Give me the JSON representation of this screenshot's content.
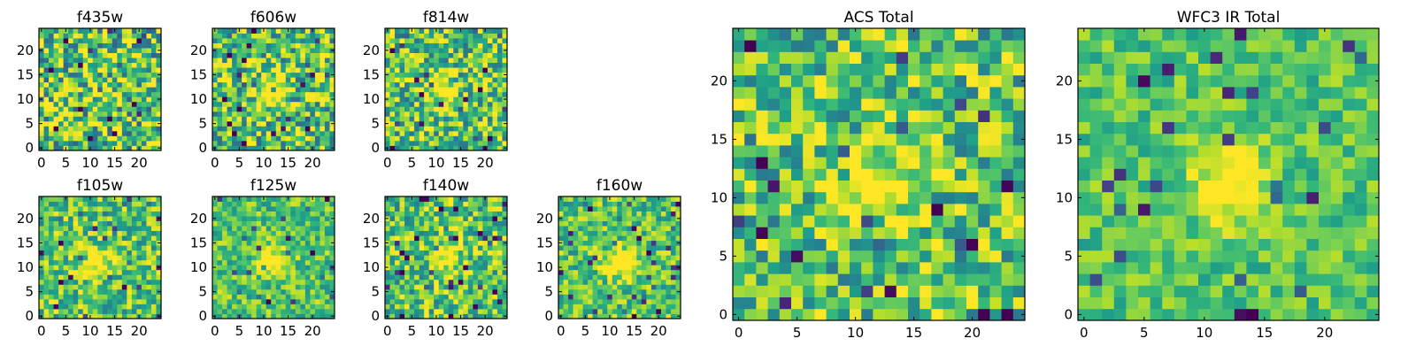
{
  "chart_data": [
    {
      "type": "heatmap",
      "title": "f435w",
      "rows": 25,
      "cols": 25,
      "xticks": [
        0,
        5,
        10,
        15,
        20
      ],
      "yticks": [
        0,
        5,
        10,
        15,
        20
      ],
      "colormap": "viridis",
      "peak": null,
      "noise": 0.85,
      "seed": 11
    },
    {
      "type": "heatmap",
      "title": "f606w",
      "rows": 25,
      "cols": 25,
      "xticks": [
        0,
        5,
        10,
        15,
        20
      ],
      "yticks": [
        0,
        5,
        10,
        15,
        20
      ],
      "colormap": "viridis",
      "peak": [
        11,
        12
      ],
      "noise": 0.75,
      "seed": 23
    },
    {
      "type": "heatmap",
      "title": "f814w",
      "rows": 25,
      "cols": 25,
      "xticks": [
        0,
        5,
        10,
        15,
        20
      ],
      "yticks": [
        0,
        5,
        10,
        15,
        20
      ],
      "colormap": "viridis",
      "peak": [
        11,
        12
      ],
      "noise": 0.7,
      "seed": 37
    },
    {
      "type": "heatmap",
      "title": "f105w",
      "rows": 25,
      "cols": 25,
      "xticks": [
        0,
        5,
        10,
        15,
        20
      ],
      "yticks": [
        0,
        5,
        10,
        15,
        20
      ],
      "colormap": "viridis",
      "peak": [
        11,
        11
      ],
      "noise": 0.55,
      "seed": 41
    },
    {
      "type": "heatmap",
      "title": "f125w",
      "rows": 25,
      "cols": 25,
      "xticks": [
        0,
        5,
        10,
        15,
        20
      ],
      "yticks": [
        0,
        5,
        10,
        15,
        20
      ],
      "colormap": "viridis",
      "peak": [
        12,
        11
      ],
      "noise": 0.45,
      "seed": 53
    },
    {
      "type": "heatmap",
      "title": "f140w",
      "rows": 25,
      "cols": 25,
      "xticks": [
        0,
        5,
        10,
        15,
        20
      ],
      "yticks": [
        0,
        5,
        10,
        15,
        20
      ],
      "colormap": "viridis",
      "peak": [
        12,
        12
      ],
      "noise": 0.6,
      "seed": 67
    },
    {
      "type": "heatmap",
      "title": "f160w",
      "rows": 25,
      "cols": 25,
      "xticks": [
        0,
        5,
        10,
        15,
        20
      ],
      "yticks": [
        0,
        5,
        10,
        15,
        20
      ],
      "colormap": "viridis",
      "peak": [
        12,
        11
      ],
      "noise": 0.5,
      "seed": 71
    },
    {
      "type": "heatmap",
      "title": "ACS Total",
      "rows": 25,
      "cols": 25,
      "xticks": [
        0,
        5,
        10,
        15,
        20
      ],
      "yticks": [
        0,
        5,
        10,
        15,
        20
      ],
      "colormap": "viridis",
      "peak": [
        11,
        11
      ],
      "noise": 0.65,
      "seed": 83
    },
    {
      "type": "heatmap",
      "title": "WFC3 IR Total",
      "rows": 25,
      "cols": 25,
      "xticks": [
        0,
        5,
        10,
        15,
        20
      ],
      "yticks": [
        0,
        5,
        10,
        15,
        20
      ],
      "colormap": "viridis",
      "peak": [
        12,
        11
      ],
      "noise": 0.35,
      "seed": 97
    }
  ]
}
